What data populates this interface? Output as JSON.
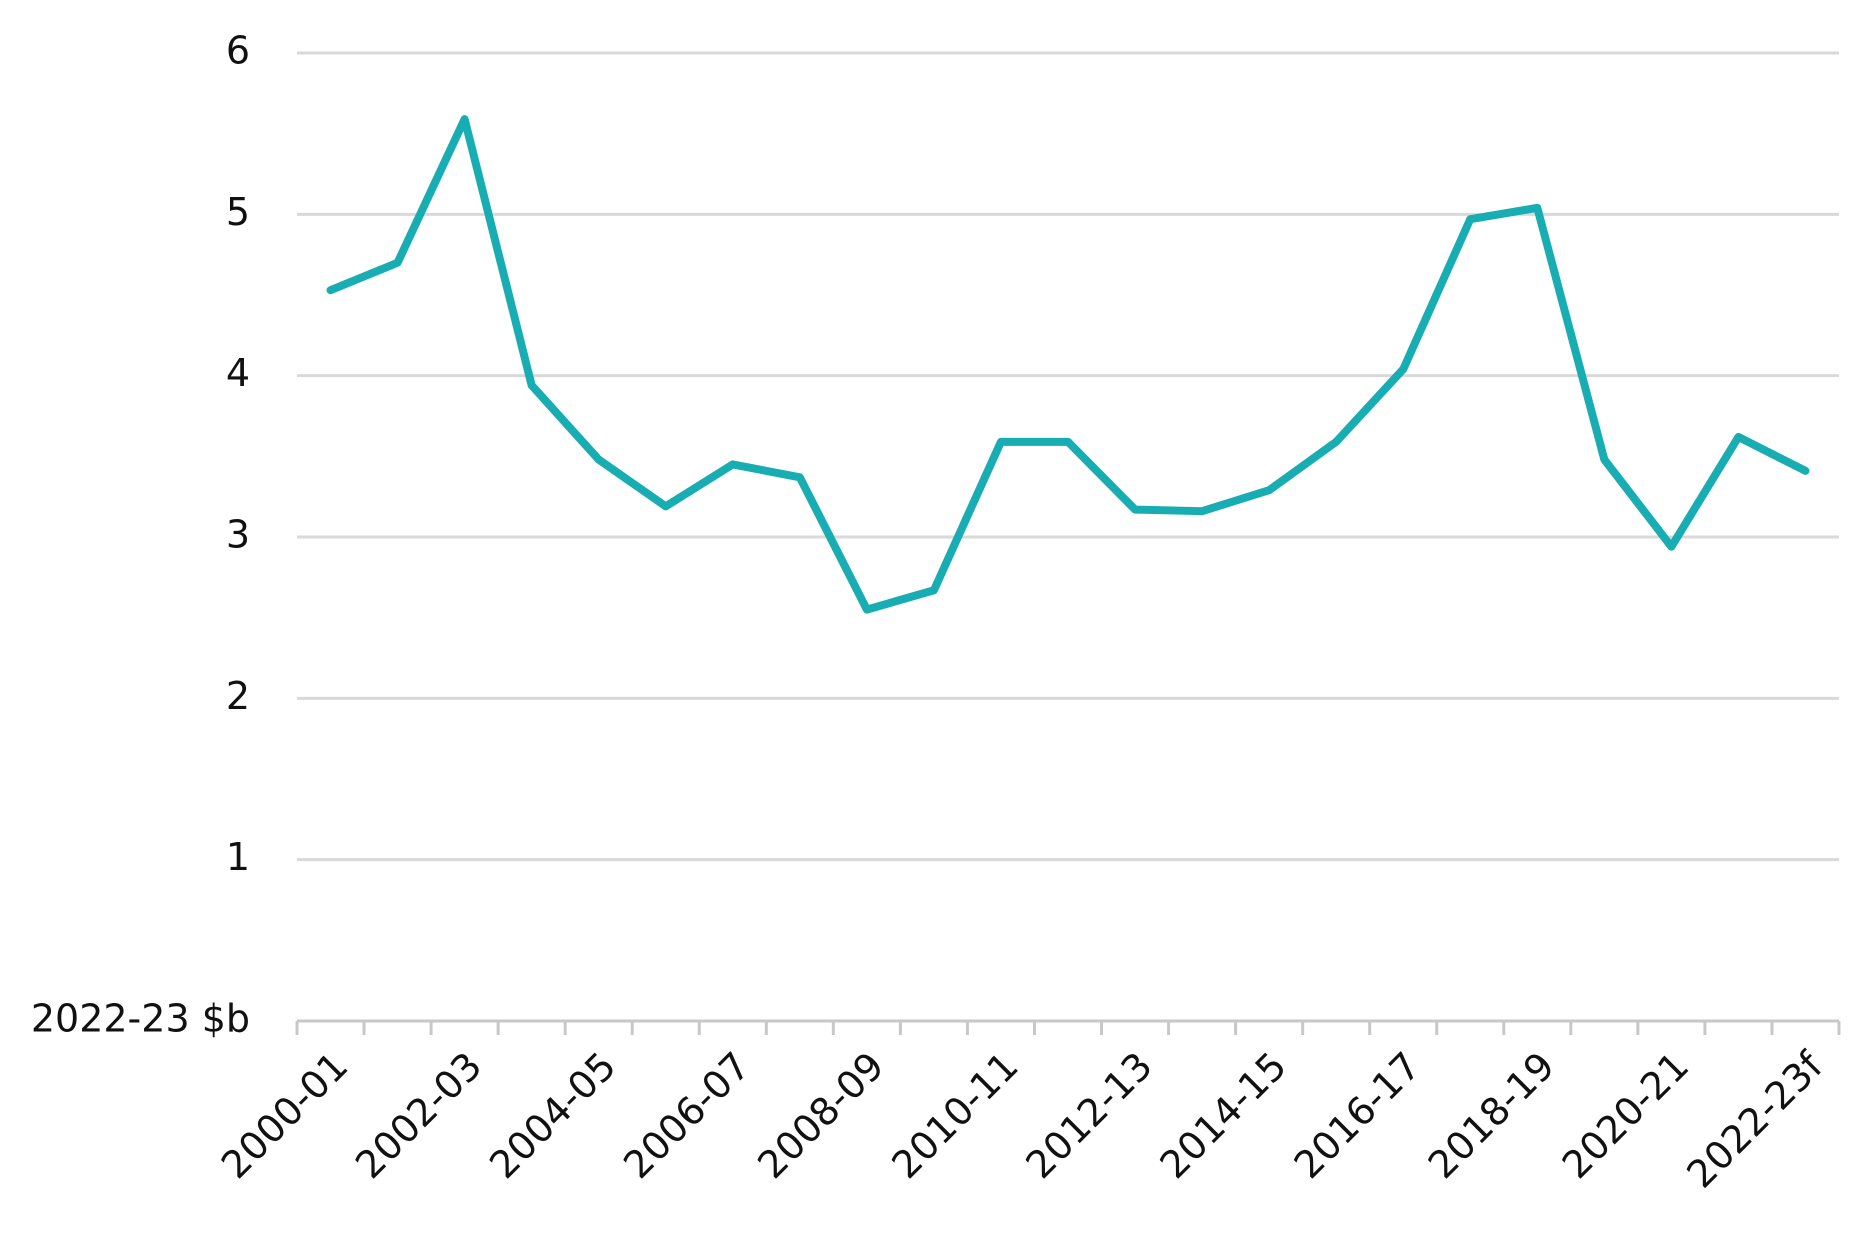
{
  "chart_data": {
    "type": "line",
    "categories": [
      "2000-01",
      null,
      "2002-03",
      null,
      "2004-05",
      null,
      "2006-07",
      null,
      "2008-09",
      null,
      "2010-11",
      null,
      "2012-13",
      null,
      "2014-15",
      null,
      "2016-17",
      null,
      "2018-19",
      null,
      "2020-21",
      null,
      "2022-23f"
    ],
    "values": [
      4.53,
      4.7,
      5.59,
      3.94,
      3.48,
      3.19,
      3.45,
      3.37,
      2.55,
      2.67,
      3.59,
      3.59,
      3.17,
      3.16,
      3.29,
      3.59,
      4.04,
      4.97,
      5.04,
      3.48,
      2.94,
      3.62,
      3.41
    ],
    "color": "#17adb3",
    "ylim": [
      0,
      6
    ],
    "yticks": [
      {
        "value": 0,
        "label": "2022-23 $b"
      },
      1,
      2,
      3,
      4,
      5,
      6
    ],
    "grid": true
  }
}
